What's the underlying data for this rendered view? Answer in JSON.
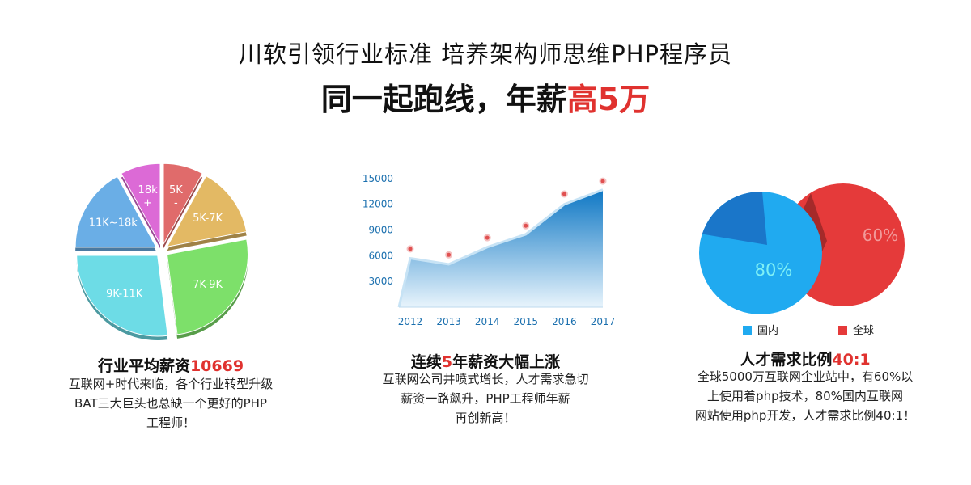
{
  "header": {
    "line1": "川软引领行业标准 培养架构师思维PHP程序员",
    "line2_prefix": "同一起跑线，年薪",
    "line2_highlight": "高5万"
  },
  "colors": {
    "accent_red": "#e0322f",
    "blue_area": "#1a86d0",
    "pie_blue": "#20aaf0",
    "pie_red": "#e53a3a"
  },
  "panels": [
    {
      "title_prefix": "行业平均薪资",
      "title_highlight": "10669",
      "body": "互联网+时代来临，各个行业转型升级\nBAT三大巨头也总缺一个更好的PHP\n工程师！"
    },
    {
      "title_prefix": "连续",
      "title_highlight": "5",
      "title_suffix": "年薪资大幅上涨",
      "body": "互联网公司井喷式增长，人才需求急切\n薪资一路飙升，PHP工程师年薪\n再创新高！"
    },
    {
      "title_prefix": "人才需求比例",
      "title_highlight": "40:1",
      "body": "全球5000万互联网企业站中，有60%以\n上使用着php技术，80%国内互联网\n网站使用php开发，人才需求比例40:1！"
    }
  ],
  "chart_data": [
    {
      "type": "pie",
      "slices": [
        {
          "label": "5K\n-",
          "value": 8,
          "color": "#e06b6b"
        },
        {
          "label": "5K-7K",
          "value": 14,
          "color": "#e3b964"
        },
        {
          "label": "7K-9K",
          "value": 26,
          "color": "#7de06a"
        },
        {
          "label": "9K-11K",
          "value": 27,
          "color": "#6ddce6"
        },
        {
          "label": "11K~18k",
          "value": 17,
          "color": "#6aaee6"
        },
        {
          "label": "18k\n+",
          "value": 8,
          "color": "#dc6ad6"
        }
      ]
    },
    {
      "type": "area",
      "x": [
        "2012",
        "2013",
        "2014",
        "2015",
        "2016",
        "2017"
      ],
      "values": [
        5700,
        5000,
        7000,
        8500,
        12000,
        13700
      ],
      "markers": [
        6800,
        6100,
        8100,
        9500,
        13200,
        14700
      ],
      "yticks": [
        3000,
        6000,
        9000,
        12000,
        15000
      ],
      "ylim": [
        0,
        16500
      ]
    },
    {
      "type": "pie",
      "slices": [
        {
          "label": "80%",
          "value": 80,
          "color": "#20aaf0"
        },
        {
          "label": "60%",
          "value": 60,
          "color": "#e53a3a"
        }
      ],
      "legend": [
        {
          "label": "国内",
          "color": "#20aaf0"
        },
        {
          "label": "全球",
          "color": "#e53a3a"
        }
      ]
    }
  ]
}
